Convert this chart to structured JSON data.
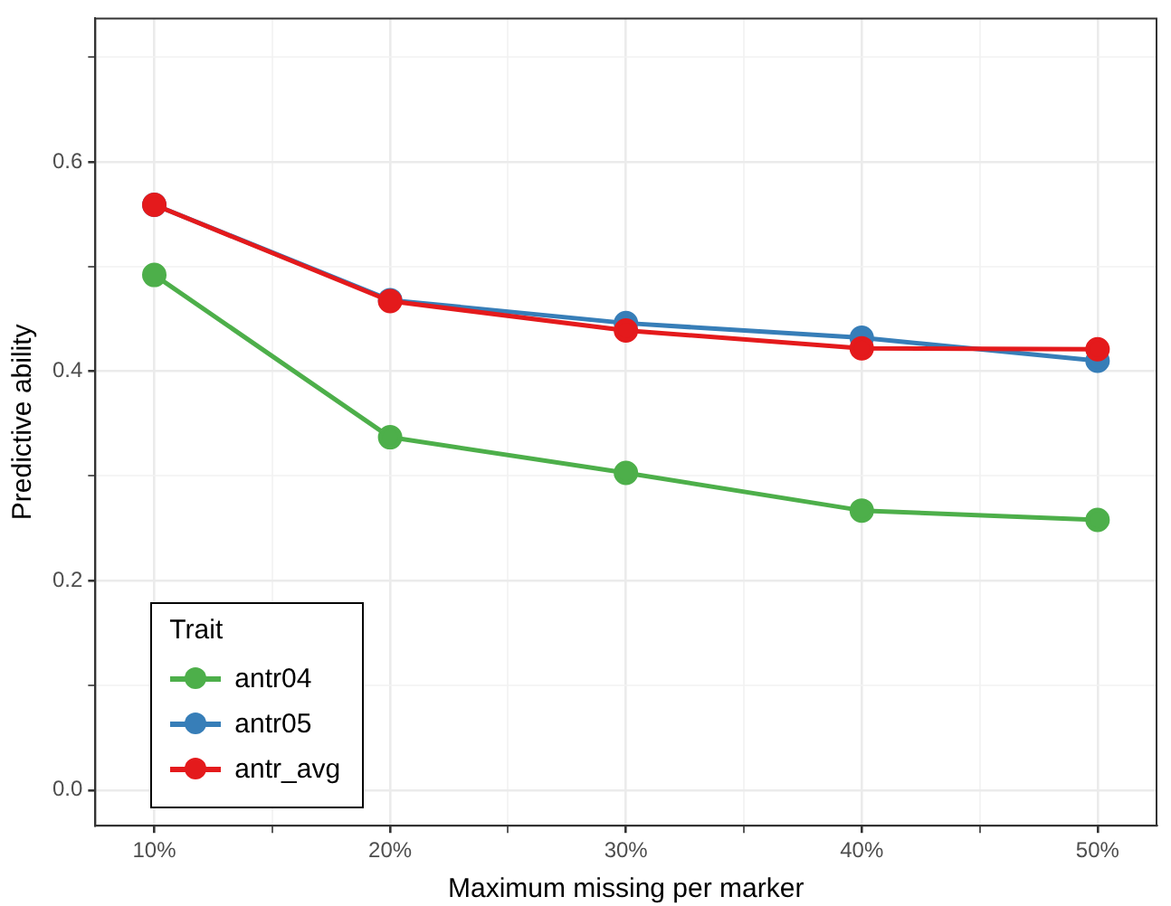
{
  "chart_data": {
    "type": "line",
    "xlabel": "Maximum missing per marker",
    "ylabel": "Predictive ability",
    "legend_title": "Trait",
    "legend": "bottom left",
    "grid": true,
    "marker": "circle",
    "line_style": "solid",
    "x": [
      10,
      20,
      30,
      40,
      50
    ],
    "xlim": [
      7.5,
      52.5
    ],
    "xticks": [
      {
        "value": 10,
        "label": "10%"
      },
      {
        "value": 15,
        "label": null
      },
      {
        "value": 20,
        "label": "20%"
      },
      {
        "value": 25,
        "label": null
      },
      {
        "value": 30,
        "label": "30%"
      },
      {
        "value": 35,
        "label": null
      },
      {
        "value": 40,
        "label": "40%"
      },
      {
        "value": 45,
        "label": null
      },
      {
        "value": 50,
        "label": "50%"
      }
    ],
    "ylim": [
      -0.034,
      0.737
    ],
    "yticks": [
      {
        "value": 0,
        "label": "0.0"
      },
      {
        "value": 0.1,
        "label": null
      },
      {
        "value": 0.2,
        "label": "0.2"
      },
      {
        "value": 0.3,
        "label": null
      },
      {
        "value": 0.4,
        "label": "0.4"
      },
      {
        "value": 0.5,
        "label": null
      },
      {
        "value": 0.6,
        "label": "0.6"
      },
      {
        "value": 0.7,
        "label": null
      }
    ],
    "series": [
      {
        "name": "antr04",
        "color": "#4daf4a",
        "values": [
          0.492,
          0.337,
          0.303,
          0.267,
          0.258
        ]
      },
      {
        "name": "antr05",
        "color": "#377eb8",
        "values": [
          0.559,
          0.468,
          0.446,
          0.432,
          0.41
        ]
      },
      {
        "name": "antr_avg",
        "color": "#e41a1c",
        "values": [
          0.559,
          0.467,
          0.439,
          0.422,
          0.421
        ]
      }
    ]
  }
}
